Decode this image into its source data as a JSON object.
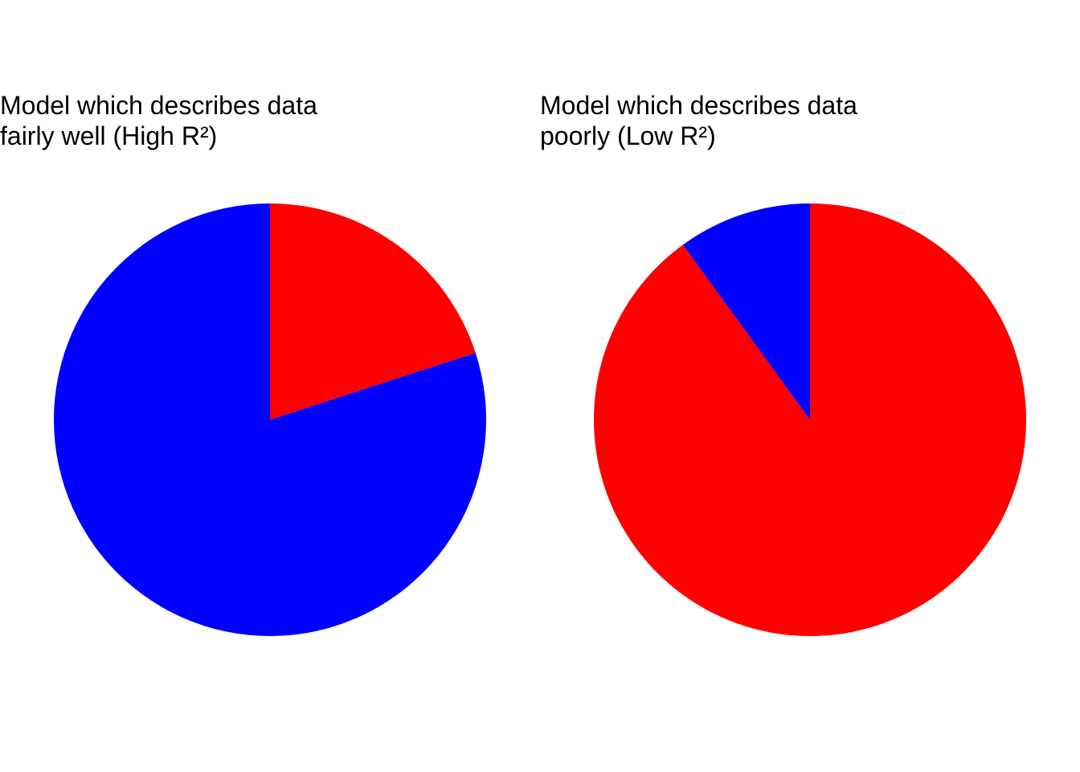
{
  "chart_data": [
    {
      "type": "pie",
      "title": [
        "Model which describes data",
        "fairly well (High R²)"
      ],
      "start_angle_deg": 90,
      "direction": "clockwise",
      "slices": [
        {
          "value": 0.2,
          "color": "#FF0000"
        },
        {
          "value": 0.8,
          "color": "#0000FF"
        }
      ]
    },
    {
      "type": "pie",
      "title": [
        "Model which describes data",
        "poorly (Low R²)"
      ],
      "start_angle_deg": 90,
      "direction": "clockwise",
      "slices": [
        {
          "value": 0.9,
          "color": "#FF0000"
        },
        {
          "value": 0.1,
          "color": "#0000FF"
        }
      ]
    }
  ]
}
